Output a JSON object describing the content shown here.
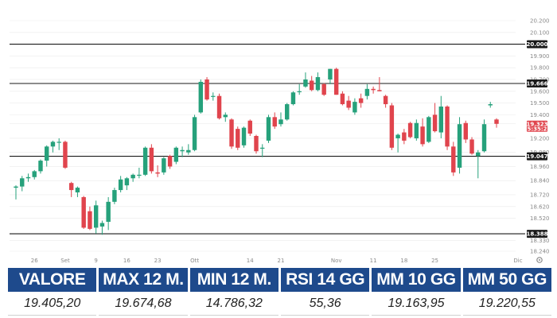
{
  "colors": {
    "up": "#26a17b",
    "down": "#e0444d",
    "level_line": "#1a1a1a",
    "grid": "#eaeaea",
    "header_bg": "#1e4a8c",
    "current_badge": "#e0444d"
  },
  "chart_data": {
    "type": "candlestick",
    "y_ticks": [
      "18.240",
      "18.330",
      "18.388",
      "18.520",
      "18.620",
      "18.720",
      "18.840",
      "18.960",
      "19.047",
      "19.080",
      "19.200",
      "19.323",
      "19.400",
      "19.500",
      "19.600",
      "19.666",
      "19.700",
      "19.800",
      "19.900",
      "20.000",
      "20.100",
      "20.200"
    ],
    "y_tick_values": [
      18240,
      18330,
      18388,
      18520,
      18620,
      18720,
      18840,
      18960,
      19047,
      19080,
      19200,
      19323,
      19400,
      19500,
      19600,
      19666,
      19700,
      19800,
      19900,
      20000,
      20100,
      20200
    ],
    "ylim": [
      18240,
      20200
    ],
    "x_ticks": [
      {
        "label": "26",
        "x": "2024-08-26"
      },
      {
        "label": "Set",
        "x": "2024-09-02"
      },
      {
        "label": "9",
        "x": "2024-09-09"
      },
      {
        "label": "16",
        "x": "2024-09-16"
      },
      {
        "label": "23",
        "x": "2024-09-23"
      },
      {
        "label": "Ott",
        "x": "2024-10-01"
      },
      {
        "label": "14",
        "x": "2024-10-14"
      },
      {
        "label": "21",
        "x": "2024-10-21"
      },
      {
        "label": "Nov",
        "x": "2024-11-01"
      },
      {
        "label": "11",
        "x": "2024-11-11"
      },
      {
        "label": "18",
        "x": "2024-11-18"
      },
      {
        "label": "25",
        "x": "2024-11-25"
      },
      {
        "label": "Dic",
        "x": "2024-12-02"
      }
    ],
    "levels": [
      {
        "value": 20000,
        "label": "20.000"
      },
      {
        "value": 19666,
        "label": "19.666"
      },
      {
        "value": 19047,
        "label": "19.047"
      },
      {
        "value": 18388,
        "label": "18.388"
      }
    ],
    "current": {
      "value": 19323,
      "label": "19.323",
      "sub_label": "15:35:25"
    },
    "candles": [
      {
        "d": "2024-08-21",
        "o": 18780,
        "h": 18800,
        "l": 18680,
        "c": 18790
      },
      {
        "d": "2024-08-22",
        "o": 18790,
        "h": 18880,
        "l": 18750,
        "c": 18860
      },
      {
        "d": "2024-08-23",
        "o": 18860,
        "h": 18900,
        "l": 18830,
        "c": 18870
      },
      {
        "d": "2024-08-26",
        "o": 18870,
        "h": 18930,
        "l": 18850,
        "c": 18920
      },
      {
        "d": "2024-08-27",
        "o": 18920,
        "h": 19020,
        "l": 18900,
        "c": 19010
      },
      {
        "d": "2024-08-28",
        "o": 19010,
        "h": 19140,
        "l": 18960,
        "c": 19130
      },
      {
        "d": "2024-08-29",
        "o": 19130,
        "h": 19180,
        "l": 19080,
        "c": 19170
      },
      {
        "d": "2024-08-30",
        "o": 19170,
        "h": 19200,
        "l": 19100,
        "c": 19170
      },
      {
        "d": "2024-09-02",
        "o": 19170,
        "h": 19180,
        "l": 18940,
        "c": 18950
      },
      {
        "d": "2024-09-03",
        "o": 18820,
        "h": 18830,
        "l": 18700,
        "c": 18760
      },
      {
        "d": "2024-09-04",
        "o": 18740,
        "h": 18790,
        "l": 18700,
        "c": 18780
      },
      {
        "d": "2024-09-05",
        "o": 18700,
        "h": 18710,
        "l": 18430,
        "c": 18440
      },
      {
        "d": "2024-09-06",
        "o": 18580,
        "h": 18620,
        "l": 18420,
        "c": 18430
      },
      {
        "d": "2024-09-09",
        "o": 18440,
        "h": 18670,
        "l": 18390,
        "c": 18630
      },
      {
        "d": "2024-09-10",
        "o": 18450,
        "h": 18500,
        "l": 18380,
        "c": 18480
      },
      {
        "d": "2024-09-11",
        "o": 18490,
        "h": 18700,
        "l": 18420,
        "c": 18660
      },
      {
        "d": "2024-09-12",
        "o": 18660,
        "h": 18780,
        "l": 18640,
        "c": 18760
      },
      {
        "d": "2024-09-13",
        "o": 18760,
        "h": 18880,
        "l": 18740,
        "c": 18850
      },
      {
        "d": "2024-09-16",
        "o": 18800,
        "h": 18870,
        "l": 18760,
        "c": 18860
      },
      {
        "d": "2024-09-17",
        "o": 18860,
        "h": 18900,
        "l": 18830,
        "c": 18890
      },
      {
        "d": "2024-09-18",
        "o": 18890,
        "h": 18950,
        "l": 18860,
        "c": 18890
      },
      {
        "d": "2024-09-19",
        "o": 18890,
        "h": 19130,
        "l": 18880,
        "c": 19120
      },
      {
        "d": "2024-09-20",
        "o": 19120,
        "h": 19150,
        "l": 18900,
        "c": 18920
      },
      {
        "d": "2024-09-23",
        "o": 18910,
        "h": 18970,
        "l": 18870,
        "c": 18900
      },
      {
        "d": "2024-09-24",
        "o": 18910,
        "h": 19040,
        "l": 18890,
        "c": 19030
      },
      {
        "d": "2024-09-25",
        "o": 19050,
        "h": 19060,
        "l": 18940,
        "c": 18960
      },
      {
        "d": "2024-09-26",
        "o": 19000,
        "h": 19130,
        "l": 18980,
        "c": 19120
      },
      {
        "d": "2024-09-27",
        "o": 19090,
        "h": 19130,
        "l": 19040,
        "c": 19100
      },
      {
        "d": "2024-09-30",
        "o": 19080,
        "h": 19150,
        "l": 19060,
        "c": 19100
      },
      {
        "d": "2024-10-01",
        "o": 19100,
        "h": 19400,
        "l": 19090,
        "c": 19380
      },
      {
        "d": "2024-10-02",
        "o": 19420,
        "h": 19700,
        "l": 19410,
        "c": 19680
      },
      {
        "d": "2024-10-03",
        "o": 19700,
        "h": 19720,
        "l": 19520,
        "c": 19530
      },
      {
        "d": "2024-10-04",
        "o": 19560,
        "h": 19590,
        "l": 19520,
        "c": 19560
      },
      {
        "d": "2024-10-07",
        "o": 19560,
        "h": 19580,
        "l": 19360,
        "c": 19370
      },
      {
        "d": "2024-10-08",
        "o": 19380,
        "h": 19420,
        "l": 19340,
        "c": 19400
      },
      {
        "d": "2024-10-09",
        "o": 19360,
        "h": 19370,
        "l": 19110,
        "c": 19130
      },
      {
        "d": "2024-10-10",
        "o": 19280,
        "h": 19300,
        "l": 19100,
        "c": 19120
      },
      {
        "d": "2024-10-11",
        "o": 19140,
        "h": 19300,
        "l": 19120,
        "c": 19290
      },
      {
        "d": "2024-10-14",
        "o": 19350,
        "h": 19360,
        "l": 19220,
        "c": 19240
      },
      {
        "d": "2024-10-15",
        "o": 19220,
        "h": 19230,
        "l": 19070,
        "c": 19090
      },
      {
        "d": "2024-10-16",
        "o": 19120,
        "h": 19150,
        "l": 19040,
        "c": 19120
      },
      {
        "d": "2024-10-17",
        "o": 19180,
        "h": 19400,
        "l": 19160,
        "c": 19380
      },
      {
        "d": "2024-10-18",
        "o": 19380,
        "h": 19420,
        "l": 19280,
        "c": 19300
      },
      {
        "d": "2024-10-21",
        "o": 19320,
        "h": 19420,
        "l": 19300,
        "c": 19360
      },
      {
        "d": "2024-10-22",
        "o": 19360,
        "h": 19500,
        "l": 19350,
        "c": 19490
      },
      {
        "d": "2024-10-23",
        "o": 19490,
        "h": 19600,
        "l": 19480,
        "c": 19590
      },
      {
        "d": "2024-10-24",
        "o": 19600,
        "h": 19660,
        "l": 19570,
        "c": 19600
      },
      {
        "d": "2024-10-25",
        "o": 19640,
        "h": 19760,
        "l": 19630,
        "c": 19700
      },
      {
        "d": "2024-10-28",
        "o": 19690,
        "h": 19730,
        "l": 19600,
        "c": 19610
      },
      {
        "d": "2024-10-29",
        "o": 19610,
        "h": 19760,
        "l": 19600,
        "c": 19720
      },
      {
        "d": "2024-10-30",
        "o": 19660,
        "h": 19670,
        "l": 19560,
        "c": 19570
      },
      {
        "d": "2024-10-31",
        "o": 19700,
        "h": 19790,
        "l": 19660,
        "c": 19790
      },
      {
        "d": "2024-11-01",
        "o": 19790,
        "h": 19800,
        "l": 19570,
        "c": 19570
      },
      {
        "d": "2024-11-04",
        "o": 19580,
        "h": 19600,
        "l": 19480,
        "c": 19490
      },
      {
        "d": "2024-11-05",
        "o": 19520,
        "h": 19560,
        "l": 19440,
        "c": 19460
      },
      {
        "d": "2024-11-06",
        "o": 19420,
        "h": 19540,
        "l": 19400,
        "c": 19510
      },
      {
        "d": "2024-11-07",
        "o": 19540,
        "h": 19580,
        "l": 19460,
        "c": 19500
      },
      {
        "d": "2024-11-08",
        "o": 19560,
        "h": 19660,
        "l": 19530,
        "c": 19620
      },
      {
        "d": "2024-11-11",
        "o": 19620,
        "h": 19640,
        "l": 19580,
        "c": 19610
      },
      {
        "d": "2024-11-12",
        "o": 19610,
        "h": 19720,
        "l": 19600,
        "c": 19600
      },
      {
        "d": "2024-11-13",
        "o": 19560,
        "h": 19570,
        "l": 19460,
        "c": 19490
      },
      {
        "d": "2024-11-14",
        "o": 19480,
        "h": 19500,
        "l": 19100,
        "c": 19120
      },
      {
        "d": "2024-11-15",
        "o": 19200,
        "h": 19240,
        "l": 19080,
        "c": 19230
      },
      {
        "d": "2024-11-18",
        "o": 19250,
        "h": 19280,
        "l": 19150,
        "c": 19180
      },
      {
        "d": "2024-11-19",
        "o": 19330,
        "h": 19340,
        "l": 19200,
        "c": 19210
      },
      {
        "d": "2024-11-20",
        "o": 19200,
        "h": 19360,
        "l": 19180,
        "c": 19330
      },
      {
        "d": "2024-11-21",
        "o": 19300,
        "h": 19370,
        "l": 19130,
        "c": 19150
      },
      {
        "d": "2024-11-22",
        "o": 19170,
        "h": 19390,
        "l": 19160,
        "c": 19380
      },
      {
        "d": "2024-11-25",
        "o": 19400,
        "h": 19500,
        "l": 19250,
        "c": 19260
      },
      {
        "d": "2024-11-26",
        "o": 19250,
        "h": 19560,
        "l": 19200,
        "c": 19470
      },
      {
        "d": "2024-11-27",
        "o": 19470,
        "h": 19480,
        "l": 19100,
        "c": 19130
      },
      {
        "d": "2024-11-28",
        "o": 19130,
        "h": 19170,
        "l": 18880,
        "c": 18910
      },
      {
        "d": "2024-11-29",
        "o": 18950,
        "h": 19380,
        "l": 18900,
        "c": 19320
      },
      {
        "d": "2024-12-02",
        "o": 19330,
        "h": 19350,
        "l": 19160,
        "c": 19190
      },
      {
        "d": "2024-12-03",
        "o": 19190,
        "h": 19210,
        "l": 19060,
        "c": 19070
      },
      {
        "d": "2024-12-04",
        "o": 19050,
        "h": 19100,
        "l": 18860,
        "c": 19080
      },
      {
        "d": "2024-12-05",
        "o": 19090,
        "h": 19360,
        "l": 19080,
        "c": 19320
      },
      {
        "d": "2024-12-06",
        "o": 19480,
        "h": 19510,
        "l": 19460,
        "c": 19490
      },
      {
        "d": "2024-12-09",
        "o": 19360,
        "h": 19370,
        "l": 19290,
        "c": 19323
      }
    ]
  },
  "stats": {
    "headers": [
      "VALORE",
      "MAX 12 M.",
      "MIN 12 M.",
      "RSI 14 GG",
      "MM 10 GG",
      "MM 50 GG"
    ],
    "values": [
      "19.405,20",
      "19.674,68",
      "14.786,32",
      "55,36",
      "19.163,95",
      "19.220,55"
    ]
  },
  "icons": {
    "settings": "gear-icon"
  }
}
